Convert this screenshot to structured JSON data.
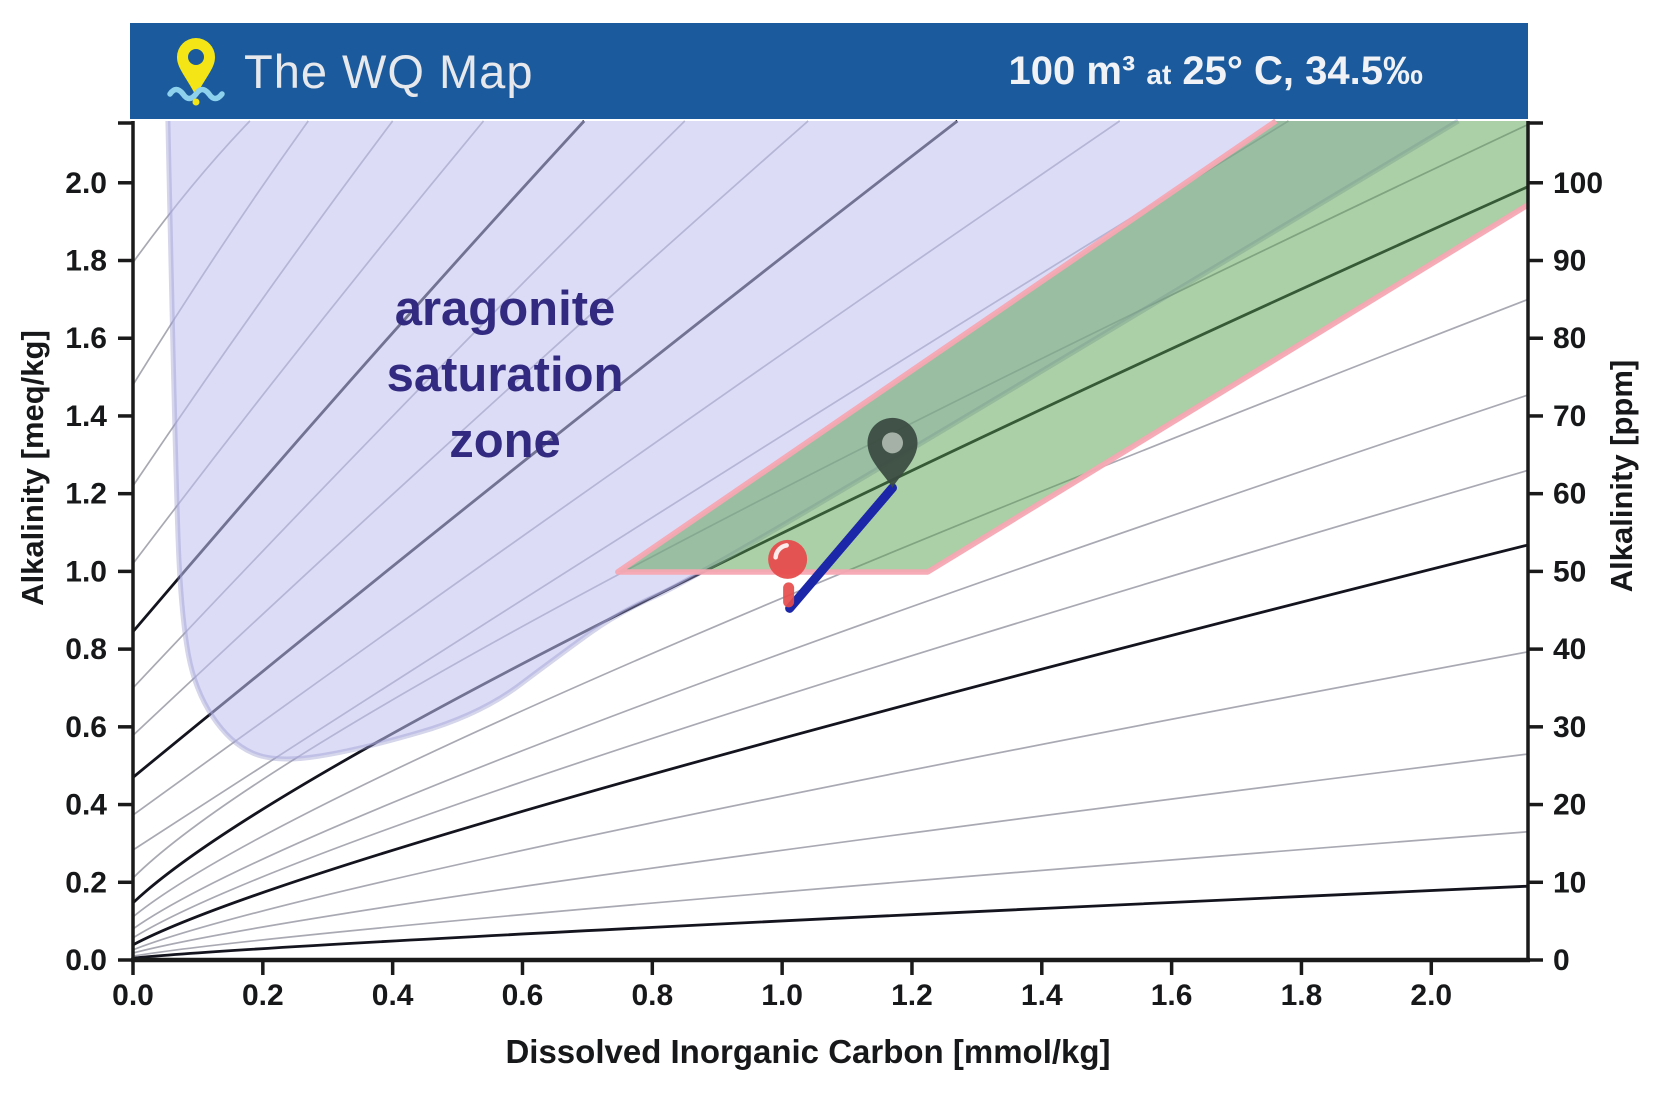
{
  "header": {
    "title": "The WQ Map",
    "volume": "100 m³",
    "at_word": "at",
    "conditions": "25° C, 34.5‰",
    "bg_color": "#1b5b9d",
    "logo_icon": "map-pin-over-water-icon",
    "logo_pin_color": "#f3e516",
    "logo_wave_color": "#8ed1ec"
  },
  "chart_data": {
    "type": "line",
    "title": "",
    "xlabel": "Dissolved Inorganic Carbon [mmol/kg]",
    "ylabel_left": "Alkalinity [meq/kg]",
    "ylabel_right": "Alkalinity [ppm]",
    "xlim": [
      0,
      2.149
    ],
    "ylim_left": [
      0,
      2.159
    ],
    "ylim_right": [
      0,
      107.95
    ],
    "grid": false,
    "x_ticks": {
      "values": [
        0,
        0.2,
        0.4,
        0.6,
        0.8,
        1.0,
        1.2,
        1.4,
        1.6,
        1.8,
        2.0
      ],
      "labels": [
        "0.0",
        "0.2",
        "0.4",
        "0.6",
        "0.8",
        "1.0",
        "1.2",
        "1.4",
        "1.6",
        "1.8",
        "2.0"
      ]
    },
    "y_ticks_left": {
      "values": [
        0,
        0.2,
        0.4,
        0.6,
        0.8,
        1.0,
        1.2,
        1.4,
        1.6,
        1.8,
        2.0
      ],
      "labels": [
        "0.0",
        "0.2",
        "0.4",
        "0.6",
        "0.8",
        "1.0",
        "1.2",
        "1.4",
        "1.6",
        "1.8",
        "2.0"
      ]
    },
    "y_ticks_right": {
      "values": [
        0,
        10,
        20,
        30,
        40,
        50,
        60,
        70,
        80,
        90,
        100
      ],
      "labels": [
        "0",
        "10",
        "20",
        "30",
        "40",
        "50",
        "60",
        "70",
        "80",
        "90",
        "100"
      ],
      "ppm_per_meq": 50
    },
    "annotations": [
      {
        "text": "aragonite saturation zone",
        "x": 0.573,
        "y": 1.5,
        "color": "#322a80"
      }
    ],
    "zones": {
      "aragonite_saturation": {
        "name": "aragonite saturation zone",
        "boundary": [
          [
            0.0538,
            2.159
          ],
          [
            0.0662,
            1.184
          ],
          [
            0.0754,
            0.875
          ],
          [
            0.0954,
            0.695
          ],
          [
            0.1493,
            0.559
          ],
          [
            0.2186,
            0.507
          ],
          [
            0.3494,
            0.541
          ],
          [
            0.5343,
            0.631
          ],
          [
            0.6573,
            0.785
          ],
          [
            0.7492,
            0.896
          ],
          [
            0.8723,
            0.986
          ],
          [
            2.0417,
            2.159
          ]
        ]
      },
      "target_band": {
        "name": "target-alkalinity-band",
        "vertices": [
          [
            0.7469,
            0.9986
          ],
          [
            1.2243,
            0.9986
          ],
          [
            2.149,
            1.9434
          ],
          [
            2.149,
            2.159
          ],
          [
            1.7606,
            2.159
          ]
        ],
        "border_path_indices": [
          4,
          0,
          1,
          2
        ]
      }
    },
    "isolines": [
      {
        "ta0": 0.005,
        "dic": 2.149,
        "ta": 0.19,
        "thick": true
      },
      {
        "ta0": 0.01,
        "dic": 2.149,
        "ta": 0.33,
        "thick": false
      },
      {
        "ta0": 0.018,
        "dic": 2.149,
        "ta": 0.53,
        "thick": false
      },
      {
        "ta0": 0.026,
        "dic": 2.149,
        "ta": 0.793,
        "thick": false
      },
      {
        "ta0": 0.039,
        "dic": 2.149,
        "ta": 1.068,
        "thick": true
      },
      {
        "ta0": 0.057,
        "dic": 2.149,
        "ta": 1.26,
        "thick": false
      },
      {
        "ta0": 0.08,
        "dic": 2.149,
        "ta": 1.454,
        "thick": false
      },
      {
        "ta0": 0.111,
        "dic": 2.149,
        "ta": 1.7,
        "thick": false
      },
      {
        "ta0": 0.147,
        "dic": 2.149,
        "ta": 1.99,
        "thick": true
      },
      {
        "ta0": 0.211,
        "dic": 2.149,
        "ta": 2.15,
        "thick": false
      },
      {
        "ta0": 0.283,
        "dic": 1.78,
        "ta": 2.159,
        "thick": false
      },
      {
        "ta0": 0.373,
        "dic": 1.52,
        "ta": 2.159,
        "thick": false
      },
      {
        "ta0": 0.47,
        "dic": 1.27,
        "ta": 2.159,
        "thick": true
      },
      {
        "ta0": 0.578,
        "dic": 1.04,
        "ta": 2.159,
        "thick": false
      },
      {
        "ta0": 0.7,
        "dic": 0.85,
        "ta": 2.159,
        "thick": false
      },
      {
        "ta0": 0.845,
        "dic": 0.695,
        "ta": 2.159,
        "thick": true
      },
      {
        "ta0": 1.02,
        "dic": 0.54,
        "ta": 2.159,
        "thick": false
      },
      {
        "ta0": 1.22,
        "dic": 0.4,
        "ta": 2.159,
        "thick": false
      },
      {
        "ta0": 1.48,
        "dic": 0.27,
        "ta": 2.159,
        "thick": false
      },
      {
        "ta0": 1.795,
        "dic": 0.18,
        "ta": 2.159,
        "thick": false
      }
    ],
    "markers": {
      "current": {
        "type": "balloon-pin",
        "dic": 1.01,
        "ta": 0.91,
        "color": "#e64c4c"
      },
      "target": {
        "type": "map-pin",
        "dic": 1.17,
        "ta": 1.215,
        "color": "#3a4a41"
      },
      "path_line": {
        "from_dic": 1.01,
        "from_ta": 0.91,
        "to_dic": 1.17,
        "to_ta": 1.215,
        "color": "#1b27a8"
      }
    }
  },
  "colors": {
    "zone_fill": "rgba(191,191,240,0.55)",
    "zone_edge": "rgba(150,150,205,0.40)",
    "band_fill": "rgba(87,159,77,0.50)",
    "band_border": "rgba(246,167,178,0.95)",
    "isoline_thin": "#a9a9b3",
    "isoline_thick": "#14141f",
    "spine": "#1a1a1a",
    "tick_label": "#17181a"
  }
}
